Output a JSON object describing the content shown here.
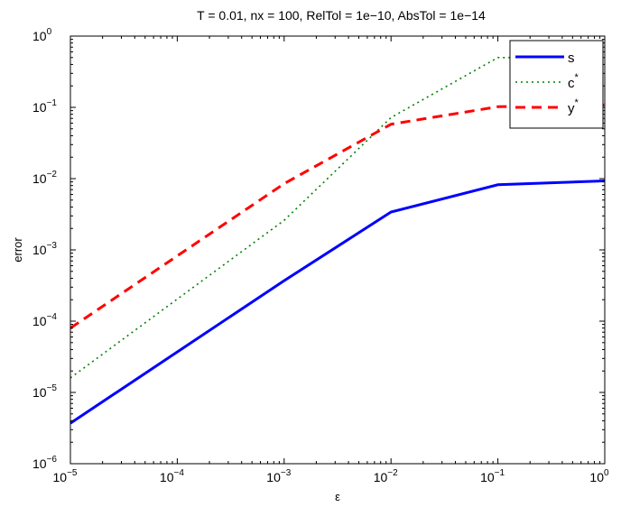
{
  "chart_data": {
    "type": "line",
    "title": "T = 0.01, nx = 100, RelTol = 1e−10, AbsTol = 1e−14",
    "xlabel": "ε",
    "ylabel": "error",
    "xscale": "log",
    "yscale": "log",
    "xlim": [
      1e-05,
      1
    ],
    "ylim": [
      1e-06,
      1
    ],
    "x_tick_exponents": [
      "−5",
      "−4",
      "−3",
      "−2",
      "−1",
      "0"
    ],
    "y_tick_exponents": [
      "0",
      "−1",
      "−2",
      "−3",
      "−4",
      "−5",
      "−6"
    ],
    "tick_base": "10",
    "legend_position": "top-right",
    "grid": false,
    "series": [
      {
        "name": "s",
        "name_sup": "",
        "color": "#0000ff",
        "style": "solid",
        "x": [
          1e-05,
          0.001,
          0.01,
          0.1,
          1
        ],
        "y": [
          3.7e-06,
          0.00037,
          0.0034,
          0.0082,
          0.0093
        ]
      },
      {
        "name": "c",
        "name_sup": "*",
        "color": "#008000",
        "style": "dotted",
        "x": [
          1e-05,
          0.001,
          0.01,
          0.1,
          1
        ],
        "y": [
          1.6e-05,
          0.0026,
          0.072,
          0.5,
          0.5
        ]
      },
      {
        "name": "y",
        "name_sup": "*",
        "color": "#ff0000",
        "style": "dashed",
        "x": [
          1e-05,
          0.001,
          0.01,
          0.1,
          1
        ],
        "y": [
          8e-05,
          0.0085,
          0.058,
          0.102,
          0.108
        ]
      }
    ]
  }
}
